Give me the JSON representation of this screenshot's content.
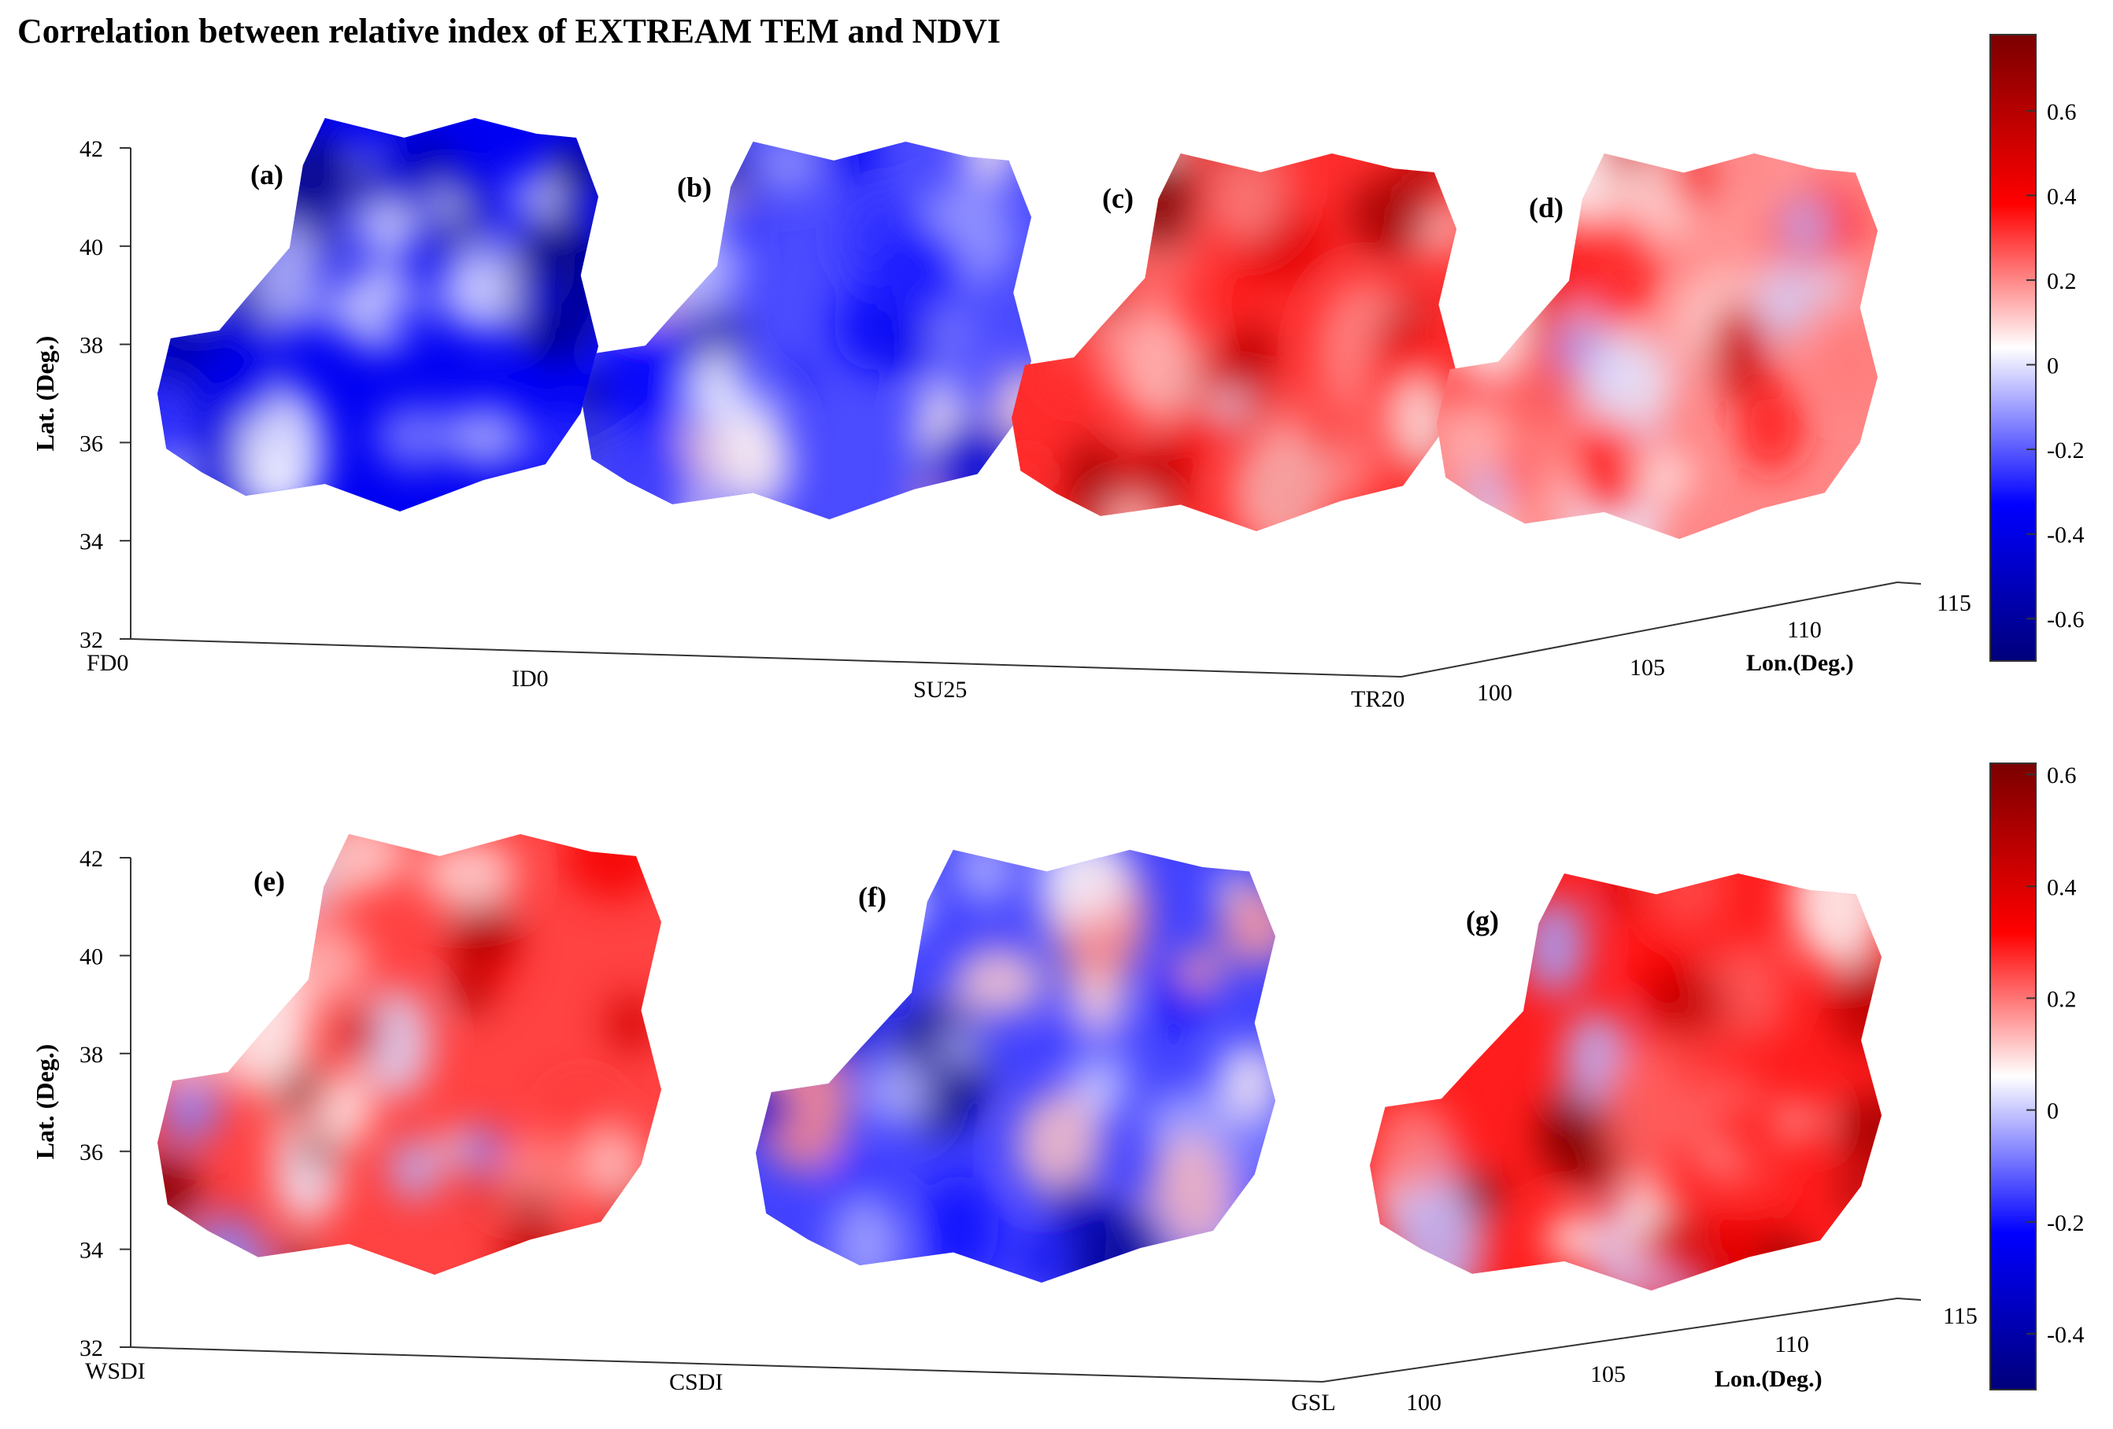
{
  "title": "Correlation between relative index of EXTREAM TEM and NDVI",
  "colors": {
    "deep_red": "#7a0000",
    "red": "#ff0000",
    "white": "#ffffff",
    "blue": "#0000ff",
    "deep_blue": "#00007a"
  },
  "chart_data": [
    {
      "type": "heatmap",
      "panel_group": "top",
      "ylabel": "Lat. (Deg.)",
      "xlabel": "Lon.(Deg.)",
      "ylim": [
        32,
        42
      ],
      "lat_ticks": [
        "32",
        "34",
        "36",
        "38",
        "40",
        "42"
      ],
      "lon_ticks": [
        "100",
        "105",
        "110",
        "115"
      ],
      "depth_labels": [
        "FD0",
        "ID0",
        "SU25",
        "TR20"
      ],
      "panels": [
        {
          "label": "(a)",
          "index": "FD0",
          "mean": -0.45
        },
        {
          "label": "(b)",
          "index": "ID0",
          "mean": -0.3
        },
        {
          "label": "(c)",
          "index": "SU25",
          "mean": 0.35
        },
        {
          "label": "(d)",
          "index": "TR20",
          "mean": 0.2
        }
      ],
      "colorbar": {
        "range": [
          -0.7,
          0.78
        ],
        "ticks": [
          "0.6",
          "0.4",
          "0.2",
          "0",
          "-0.2",
          "-0.4",
          "-0.6"
        ]
      }
    },
    {
      "type": "heatmap",
      "panel_group": "bottom",
      "ylabel": "Lat. (Deg.)",
      "xlabel": "Lon.(Deg.)",
      "ylim": [
        32,
        42
      ],
      "lat_ticks": [
        "32",
        "34",
        "36",
        "38",
        "40",
        "42"
      ],
      "lon_ticks": [
        "100",
        "105",
        "110",
        "115"
      ],
      "depth_labels": [
        "WSDI",
        "CSDI",
        "GSL"
      ],
      "panels": [
        {
          "label": "(e)",
          "index": "WSDI",
          "mean": 0.25
        },
        {
          "label": "(f)",
          "index": "CSDI",
          "mean": -0.25
        },
        {
          "label": "(g)",
          "index": "GSL",
          "mean": 0.3
        }
      ],
      "colorbar": {
        "range": [
          -0.5,
          0.62
        ],
        "ticks": [
          "0.6",
          "0.4",
          "0.2",
          "0",
          "-0.2",
          "-0.4"
        ]
      }
    }
  ]
}
